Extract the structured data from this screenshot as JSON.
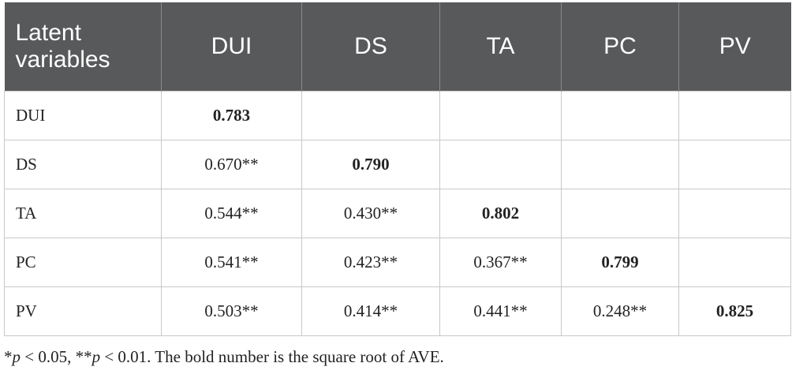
{
  "table": {
    "header": [
      "Latent variables",
      "DUI",
      "DS",
      "TA",
      "PC",
      "PV"
    ],
    "rows": [
      [
        "DUI",
        "0.783",
        null,
        null,
        null,
        null
      ],
      [
        "DS",
        "0.670**",
        "0.790",
        null,
        null,
        null
      ],
      [
        "TA",
        "0.544**",
        "0.430**",
        "0.802",
        null,
        null
      ],
      [
        "PC",
        "0.541**",
        "0.423**",
        "0.367**",
        "0.799",
        null
      ],
      [
        "PV",
        "0.503**",
        "0.414**",
        "0.441**",
        "0.248**",
        "0.825"
      ]
    ]
  },
  "footnote": [
    "*",
    "p",
    " < 0.05, **",
    "p",
    " < 0.01. The bold number is the square root of AVE."
  ]
}
